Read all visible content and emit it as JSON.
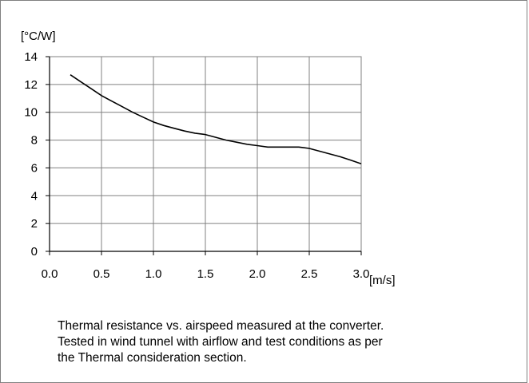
{
  "chart_data": {
    "type": "line",
    "ylabel": "[°C/W]",
    "xlabel": "[m/s]",
    "xlim": [
      0.0,
      3.0
    ],
    "ylim": [
      0,
      14
    ],
    "x_ticks": [
      "0.0",
      "0.5",
      "1.0",
      "1.5",
      "2.0",
      "2.5",
      "3.0"
    ],
    "y_ticks": [
      "0",
      "2",
      "4",
      "6",
      "8",
      "10",
      "12",
      "14"
    ],
    "grid": true,
    "legend": "none",
    "colors": {
      "line": "#000000",
      "grid": "#808080",
      "axis": "#000000"
    },
    "series": [
      {
        "x": [
          0.2,
          0.3,
          0.4,
          0.5,
          0.6,
          0.7,
          0.8,
          0.9,
          1.0,
          1.1,
          1.2,
          1.3,
          1.4,
          1.5,
          1.6,
          1.7,
          1.8,
          1.9,
          2.0,
          2.1,
          2.2,
          2.3,
          2.4,
          2.5,
          2.6,
          2.7,
          2.8,
          2.9,
          3.0
        ],
        "y": [
          12.7,
          12.2,
          11.7,
          11.2,
          10.8,
          10.4,
          10.0,
          9.65,
          9.3,
          9.05,
          8.85,
          8.65,
          8.5,
          8.4,
          8.2,
          8.0,
          7.85,
          7.7,
          7.6,
          7.5,
          7.5,
          7.5,
          7.5,
          7.4,
          7.2,
          7.0,
          6.8,
          6.55,
          6.3
        ]
      }
    ]
  },
  "caption": {
    "line1": "Thermal resistance vs. airspeed measured at the converter.",
    "line2": "Tested in wind tunnel with airflow and test conditions as per",
    "line3": "the Thermal consideration section."
  }
}
